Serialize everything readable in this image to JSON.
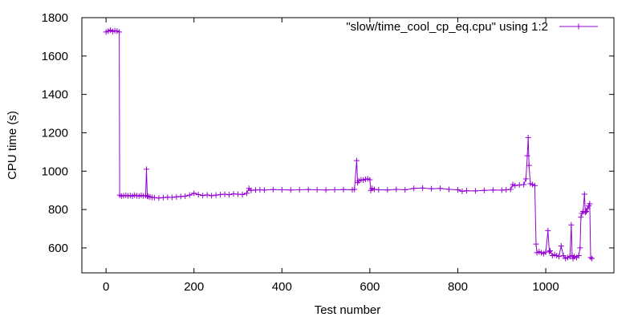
{
  "chart_data": {
    "type": "line",
    "xlabel": "Test number",
    "ylabel": "CPU time (s)",
    "xlim": [
      -55,
      1155
    ],
    "ylim": [
      470,
      1800
    ],
    "xticks": [
      0,
      200,
      400,
      600,
      800,
      1000
    ],
    "yticks": [
      600,
      800,
      1000,
      1200,
      1400,
      1600,
      1800
    ],
    "grid": false,
    "legend_position": "top-right",
    "point_marker": "plus",
    "series": [
      {
        "name": "\"slow/time_cool_cp_eq.cpu\" using 1:2",
        "color": "#9400d3",
        "x": [
          0,
          5,
          10,
          15,
          20,
          25,
          30,
          31,
          35,
          40,
          45,
          50,
          55,
          60,
          65,
          70,
          75,
          80,
          85,
          90,
          92,
          94,
          96,
          100,
          105,
          110,
          120,
          130,
          140,
          150,
          160,
          170,
          180,
          190,
          200,
          210,
          220,
          230,
          240,
          250,
          260,
          270,
          280,
          290,
          300,
          310,
          320,
          325,
          330,
          340,
          350,
          360,
          380,
          400,
          420,
          440,
          460,
          480,
          500,
          520,
          540,
          560,
          565,
          570,
          572,
          575,
          580,
          585,
          590,
          595,
          600,
          602,
          605,
          610,
          620,
          640,
          660,
          680,
          700,
          720,
          740,
          760,
          780,
          800,
          810,
          820,
          840,
          860,
          880,
          900,
          910,
          920,
          925,
          930,
          940,
          950,
          955,
          958,
          960,
          962,
          965,
          970,
          975,
          978,
          980,
          985,
          990,
          995,
          1000,
          1005,
          1008,
          1010,
          1015,
          1020,
          1025,
          1030,
          1035,
          1040,
          1045,
          1050,
          1055,
          1058,
          1060,
          1062,
          1065,
          1070,
          1075,
          1078,
          1080,
          1082,
          1085,
          1088,
          1090,
          1092,
          1095,
          1098,
          1100,
          1102,
          1105
        ],
        "y": [
          1725,
          1730,
          1735,
          1728,
          1732,
          1730,
          1725,
          875,
          870,
          872,
          874,
          871,
          873,
          870,
          875,
          872,
          870,
          874,
          871,
          873,
          1010,
          870,
          868,
          866,
          863,
          862,
          860,
          862,
          864,
          863,
          866,
          868,
          870,
          875,
          885,
          878,
          873,
          876,
          872,
          875,
          878,
          880,
          877,
          882,
          880,
          878,
          885,
          910,
          900,
          902,
          903,
          902,
          904,
          903,
          902,
          903,
          904,
          903,
          902,
          903,
          904,
          903,
          905,
          1055,
          940,
          950,
          955,
          953,
          958,
          960,
          955,
          900,
          910,
          905,
          903,
          902,
          905,
          903,
          910,
          912,
          908,
          910,
          905,
          903,
          895,
          898,
          897,
          900,
          902,
          901,
          903,
          905,
          930,
          925,
          928,
          930,
          960,
          1080,
          1175,
          1030,
          935,
          930,
          925,
          620,
          575,
          580,
          575,
          570,
          578,
          690,
          580,
          585,
          560,
          565,
          560,
          555,
          610,
          560,
          545,
          550,
          555,
          720,
          560,
          545,
          555,
          550,
          560,
          600,
          760,
          780,
          790,
          880,
          785,
          790,
          805,
          820,
          830,
          550,
          545
        ]
      }
    ]
  }
}
